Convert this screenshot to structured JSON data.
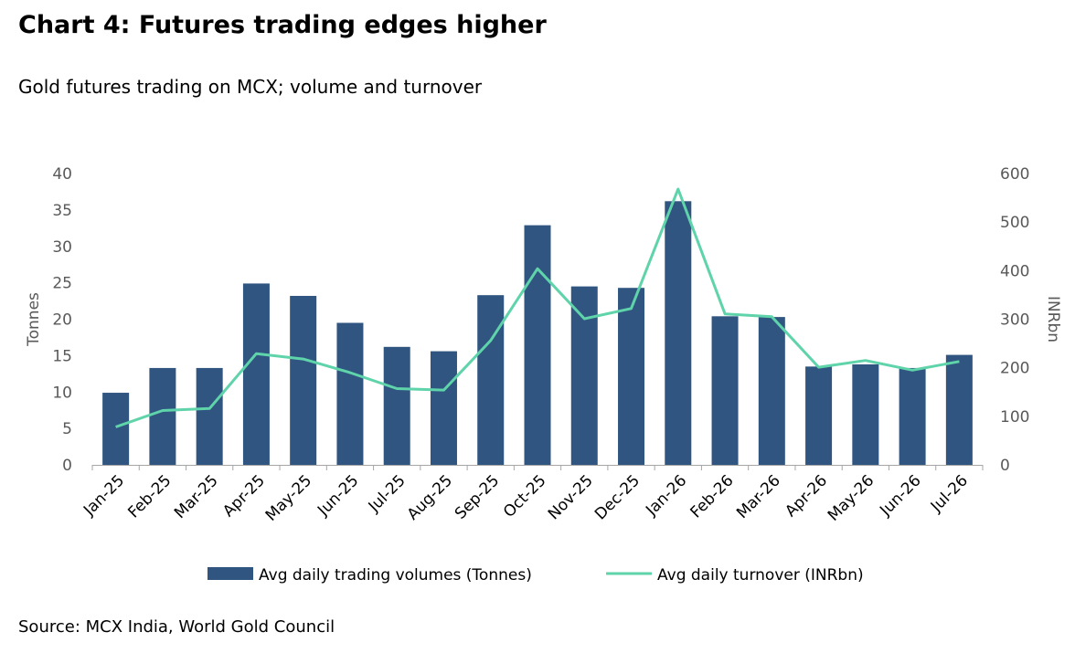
{
  "title": "Chart 4: Futures trading edges higher",
  "subtitle": "Gold futures trading on MCX; volume and turnover",
  "source": "Source: MCX India, World Gold Council",
  "chart_data": {
    "type": "bar",
    "categories": [
      "Jan-25",
      "Feb-25",
      "Mar-25",
      "Apr-25",
      "May-25",
      "Jun-25",
      "Jul-25",
      "Aug-25",
      "Sep-25",
      "Oct-25",
      "Nov-25",
      "Dec-25",
      "Jan-26",
      "Feb-26",
      "Mar-26",
      "Apr-26",
      "May-26",
      "Jun-26",
      "Jul-26"
    ],
    "series": [
      {
        "name": "Avg daily trading volumes (Tonnes)",
        "type": "bar",
        "axis": "left",
        "color": "#2f5580",
        "values": [
          9.9,
          13.3,
          13.3,
          24.9,
          23.2,
          19.5,
          16.2,
          15.6,
          23.3,
          32.9,
          24.5,
          24.3,
          36.2,
          20.4,
          20.3,
          13.5,
          13.8,
          13.3,
          15.1
        ]
      },
      {
        "name": "Avg daily turnover (INRbn)",
        "type": "line",
        "axis": "right",
        "color": "#5fd3a9",
        "values": [
          78,
          112,
          116,
          229,
          218,
          190,
          157,
          154,
          256,
          404,
          301,
          322,
          568,
          311,
          305,
          201,
          215,
          195,
          213
        ]
      }
    ],
    "yaxis_left": {
      "label": "Tonnes",
      "min": 0,
      "max": 40,
      "ticks": [
        0,
        5,
        10,
        15,
        20,
        25,
        30,
        35,
        40
      ]
    },
    "yaxis_right": {
      "label": "INRbn",
      "min": 0,
      "max": 600,
      "ticks": [
        0,
        100,
        200,
        300,
        400,
        500,
        600
      ]
    },
    "grid": false,
    "legend_position": "bottom"
  }
}
